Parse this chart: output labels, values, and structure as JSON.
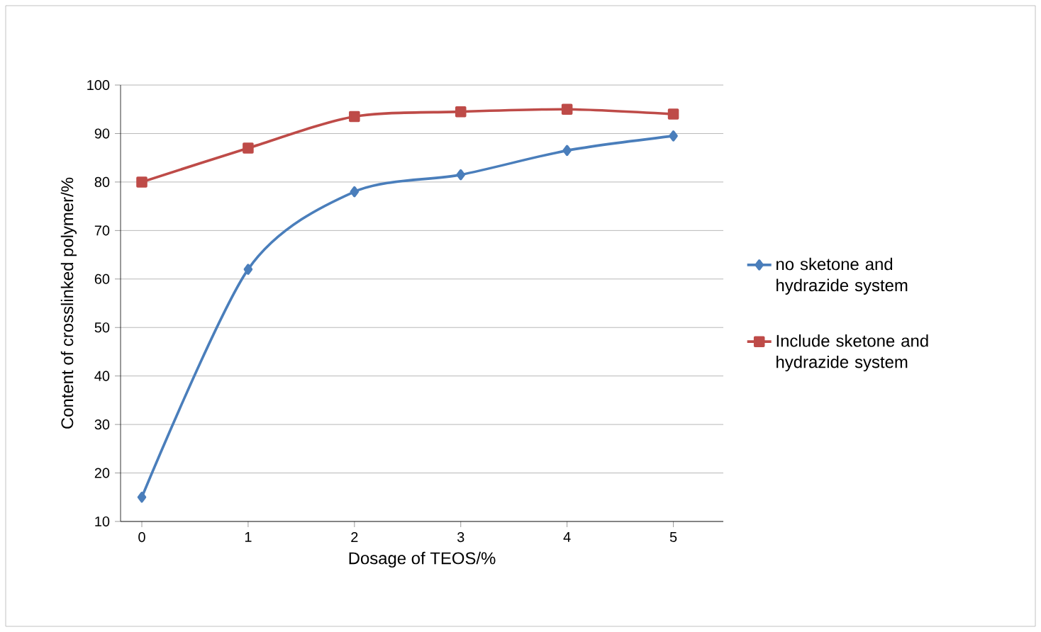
{
  "chart_data": {
    "type": "line",
    "xlabel": "Dosage of TEOS/%",
    "ylabel": "Content of crosslinked polymer/%",
    "categories": [
      "0",
      "1",
      "2",
      "3",
      "4",
      "5"
    ],
    "series": [
      {
        "name": "no sketone and hydrazide system",
        "color": "#4a7ebb",
        "marker": "diamond",
        "values": [
          15,
          62,
          78,
          81.5,
          86.5,
          89.5
        ]
      },
      {
        "name": "Include sketone and hydrazide system",
        "color": "#be4b48",
        "marker": "square",
        "values": [
          80,
          87,
          93.5,
          94.5,
          95,
          94
        ]
      }
    ],
    "ylim": [
      10,
      100
    ],
    "yticks": [
      10,
      20,
      30,
      40,
      50,
      60,
      70,
      80,
      90,
      100
    ],
    "grid": "y",
    "legend": "right",
    "line_style": "solid"
  }
}
